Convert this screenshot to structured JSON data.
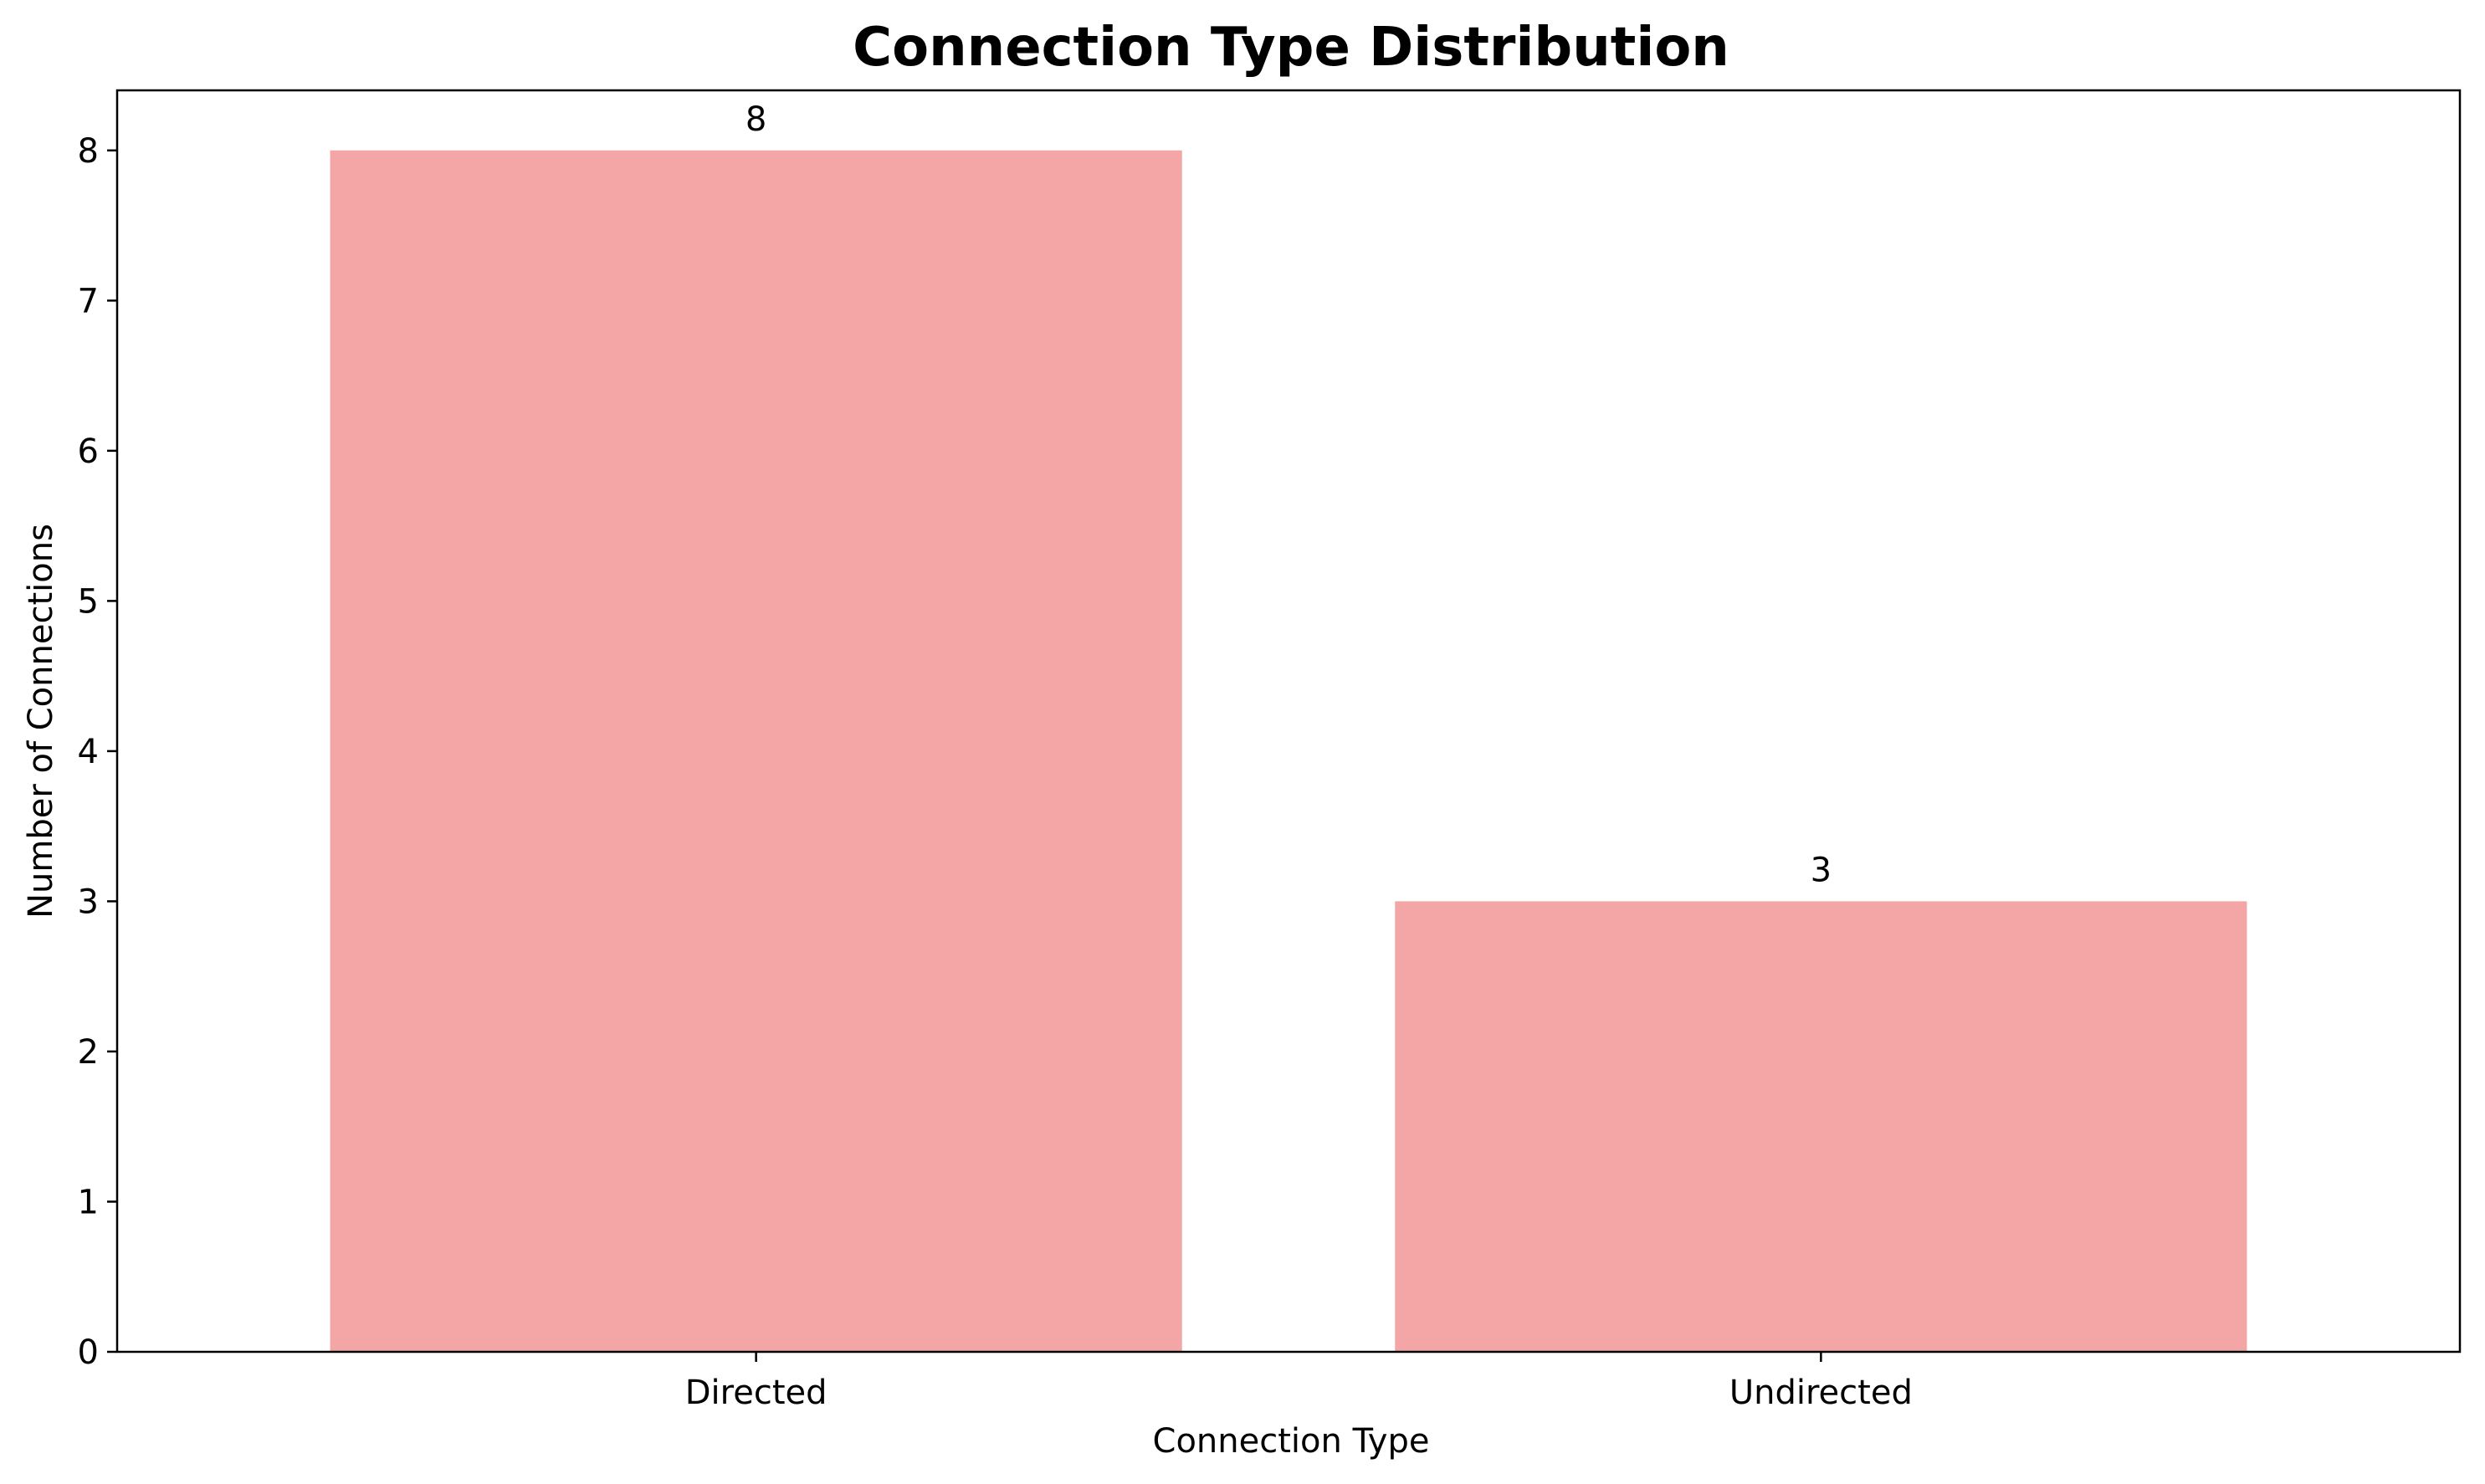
{
  "chart_data": {
    "type": "bar",
    "title": "Connection Type Distribution",
    "xlabel": "Connection Type",
    "ylabel": "Number of Connections",
    "categories": [
      "Directed",
      "Undirected"
    ],
    "values": [
      8,
      3
    ],
    "value_labels": [
      "8",
      "3"
    ],
    "ylim": [
      0,
      8.4
    ],
    "yticks": [
      0,
      1,
      2,
      3,
      4,
      5,
      6,
      7,
      8
    ],
    "ytick_labels": [
      "0",
      "1",
      "2",
      "3",
      "4",
      "5",
      "6",
      "7",
      "8"
    ],
    "bar_color": "#f4a6a6",
    "grid": false,
    "legend": "none"
  }
}
